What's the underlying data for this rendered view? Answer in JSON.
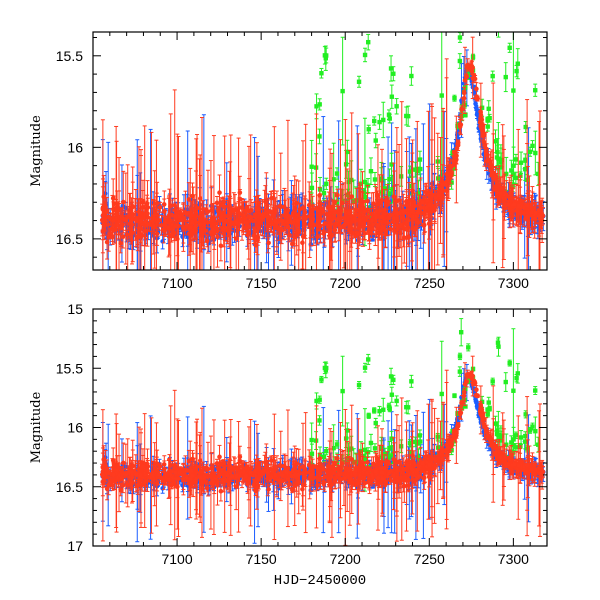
{
  "chart_data": [
    {
      "type": "scatter",
      "panel": "top",
      "xlabel": "",
      "ylabel": "Magnitude",
      "xlim": [
        7050,
        7320
      ],
      "ylim": [
        16.67,
        15.37
      ],
      "y_inverted": true,
      "x_ticks": [
        7100,
        7150,
        7200,
        7250,
        7300
      ],
      "x_tick_labels": [
        "7100",
        "7150",
        "7200",
        "7250",
        "7300"
      ],
      "y_ticks": [
        15.5,
        16,
        16.5
      ],
      "y_tick_labels": [
        "15.5",
        "16",
        "16.5"
      ],
      "series": [
        {
          "name": "blue",
          "color": "#1a5cff",
          "baseline": 16.41,
          "scatter": 0.09,
          "peak_mag": 15.57,
          "peak_time": 7273
        },
        {
          "name": "red",
          "color": "#ff3b1f",
          "baseline": 16.4,
          "scatter": 0.1,
          "peak_mag": 15.55,
          "peak_time": 7274
        },
        {
          "name": "green",
          "color": "#22ee22",
          "baseline": 16.2,
          "scatter": 0.15,
          "peak_mag": 15.6,
          "peak_time": 7275
        }
      ]
    },
    {
      "type": "scatter",
      "panel": "bottom",
      "xlabel": "HJD−2450000",
      "ylabel": "Magnitude",
      "xlim": [
        7050,
        7320
      ],
      "ylim": [
        17,
        15
      ],
      "y_inverted": true,
      "x_ticks": [
        7100,
        7150,
        7200,
        7250,
        7300
      ],
      "x_tick_labels": [
        "7100",
        "7150",
        "7200",
        "7250",
        "7300"
      ],
      "y_ticks": [
        15,
        15.5,
        16,
        16.5,
        17
      ],
      "y_tick_labels": [
        "15",
        "15.5",
        "16",
        "16.5",
        "17"
      ],
      "series": [
        {
          "name": "blue",
          "color": "#1a5cff",
          "baseline": 16.41,
          "scatter": 0.09,
          "peak_mag": 15.57,
          "peak_time": 7273
        },
        {
          "name": "red",
          "color": "#ff3b1f",
          "baseline": 16.4,
          "scatter": 0.1,
          "peak_mag": 15.55,
          "peak_time": 7274
        },
        {
          "name": "green",
          "color": "#22ee22",
          "baseline": 16.2,
          "scatter": 0.15,
          "peak_mag": 15.6,
          "peak_time": 7275
        }
      ]
    }
  ]
}
